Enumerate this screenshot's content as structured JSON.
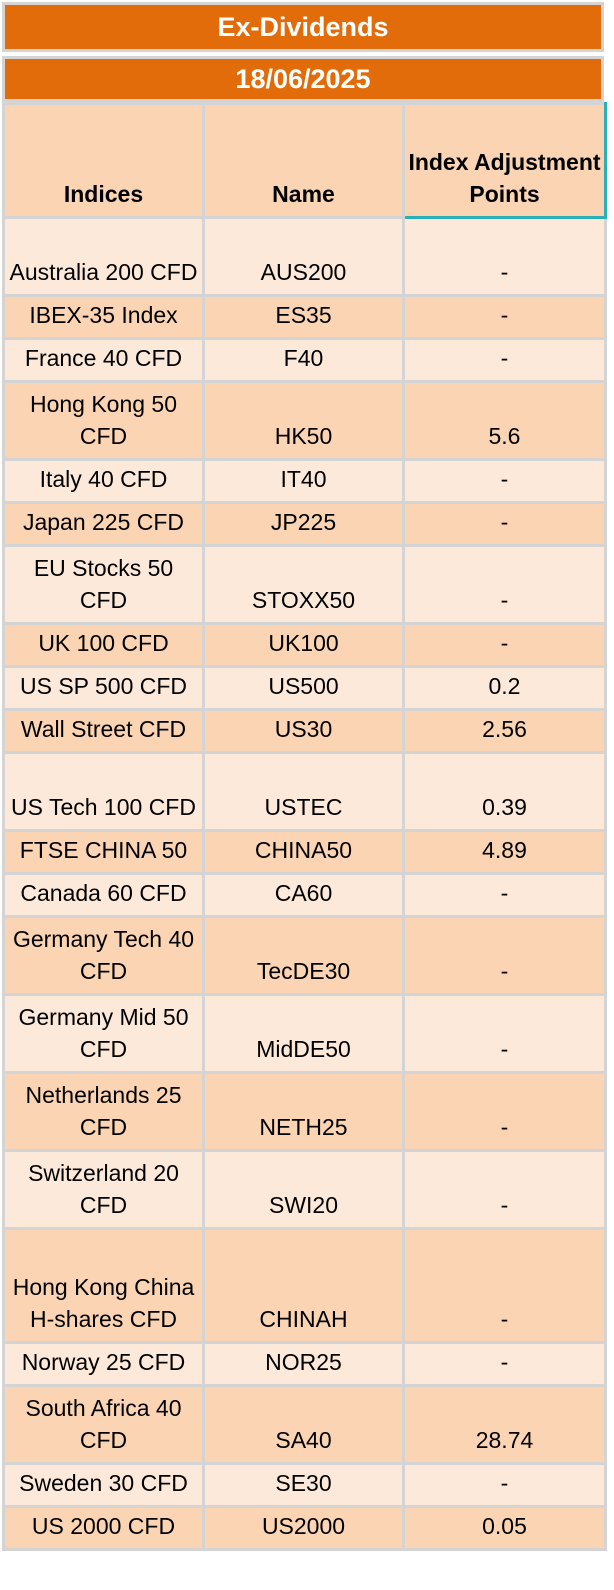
{
  "header": {
    "title": "Ex-Dividends",
    "date": "18/06/2025"
  },
  "columns": {
    "indices": "Indices",
    "name": "Name",
    "points": "Index Adjustment Points"
  },
  "colors": {
    "header_band": "#e36c0a",
    "row_light": "#fde9d9",
    "row_dark": "#fbd4b4",
    "accent_border": "#2ab1b8"
  },
  "rows": [
    {
      "index": "Australia 200 CFD",
      "name": "AUS200",
      "points": "-"
    },
    {
      "index": "IBEX-35 Index",
      "name": "ES35",
      "points": "-"
    },
    {
      "index": "France 40 CFD",
      "name": "F40",
      "points": "-"
    },
    {
      "index": "Hong Kong 50 CFD",
      "name": "HK50",
      "points": "5.6"
    },
    {
      "index": "Italy 40 CFD",
      "name": "IT40",
      "points": "-"
    },
    {
      "index": "Japan 225 CFD",
      "name": "JP225",
      "points": "-"
    },
    {
      "index": "EU Stocks 50 CFD",
      "name": "STOXX50",
      "points": "-"
    },
    {
      "index": "UK 100 CFD",
      "name": "UK100",
      "points": "-"
    },
    {
      "index": "US SP 500 CFD",
      "name": "US500",
      "points": "0.2"
    },
    {
      "index": "Wall Street CFD",
      "name": "US30",
      "points": "2.56"
    },
    {
      "index": "US Tech 100 CFD",
      "name": "USTEC",
      "points": "0.39"
    },
    {
      "index": "FTSE CHINA 50",
      "name": "CHINA50",
      "points": "4.89"
    },
    {
      "index": "Canada 60 CFD",
      "name": "CA60",
      "points": "-"
    },
    {
      "index": "Germany Tech 40 CFD",
      "name": "TecDE30",
      "points": "-"
    },
    {
      "index": "Germany Mid 50 CFD",
      "name": "MidDE50",
      "points": "-"
    },
    {
      "index": "Netherlands 25 CFD",
      "name": "NETH25",
      "points": "-"
    },
    {
      "index": "Switzerland 20 CFD",
      "name": "SWI20",
      "points": "-"
    },
    {
      "index": "Hong Kong China H-shares CFD",
      "name": "CHINAH",
      "points": "-"
    },
    {
      "index": "Norway 25 CFD",
      "name": "NOR25",
      "points": "-"
    },
    {
      "index": "South Africa 40 CFD",
      "name": "SA40",
      "points": "28.74"
    },
    {
      "index": "Sweden 30 CFD",
      "name": "SE30",
      "points": "-"
    },
    {
      "index": "US 2000 CFD",
      "name": "US2000",
      "points": "0.05"
    }
  ]
}
